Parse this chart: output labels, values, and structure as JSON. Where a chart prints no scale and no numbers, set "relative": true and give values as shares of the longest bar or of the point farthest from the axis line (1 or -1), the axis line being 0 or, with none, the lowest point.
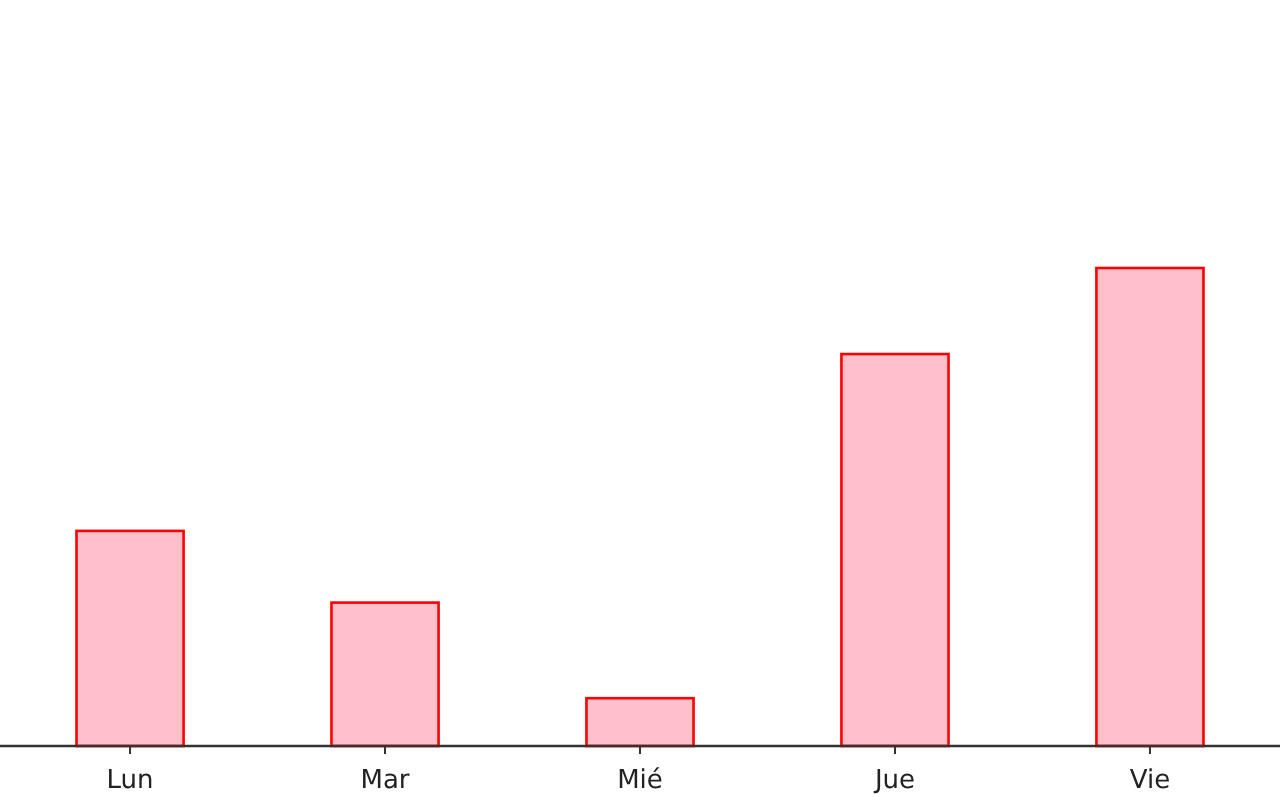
{
  "chart_data": {
    "type": "bar",
    "relative": true,
    "categories": [
      "Lun",
      "Mar",
      "Mié",
      "Jue",
      "Vie"
    ],
    "series": [
      {
        "color": "#ffc0cb",
        "values": [
          0.45,
          0.3,
          0.1,
          0.82,
          1
        ]
      }
    ]
  }
}
